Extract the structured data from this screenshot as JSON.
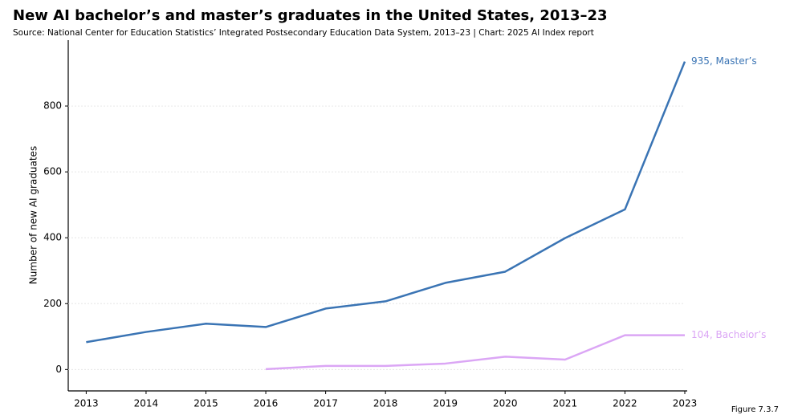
{
  "chart_data": {
    "type": "line",
    "title": "New AI bachelor’s and master’s graduates in the United States, 2013–23",
    "subtitle": "Source: National Center for Education Statistics’ Integrated Postsecondary Education Data System, 2013–23 | Chart: 2025 AI Index report",
    "y_label": "Number of new AI graduates",
    "figure_label": "Figure 7.3.7",
    "x": [
      2013,
      2014,
      2015,
      2016,
      2017,
      2018,
      2019,
      2020,
      2021,
      2022,
      2023
    ],
    "series": [
      {
        "name": "Master’s",
        "color": "#3a74b4",
        "end_label": "935, Master’s",
        "values": [
          83,
          114,
          139,
          129,
          185,
          207,
          263,
          297,
          399,
          486,
          935
        ]
      },
      {
        "name": "Bachelor’s",
        "color": "#dba6f5",
        "end_label": "104, Bachelor’s",
        "values": [
          null,
          null,
          null,
          1,
          11,
          11,
          18,
          39,
          30,
          104,
          104
        ]
      }
    ],
    "xlim": [
      2012.7,
      2023
    ],
    "xticks": [
      2013,
      2014,
      2015,
      2016,
      2017,
      2018,
      2019,
      2020,
      2021,
      2022,
      2023
    ],
    "ylim": [
      -65,
      1000
    ],
    "yticks": [
      0,
      200,
      400,
      600,
      800
    ],
    "grid": true
  }
}
